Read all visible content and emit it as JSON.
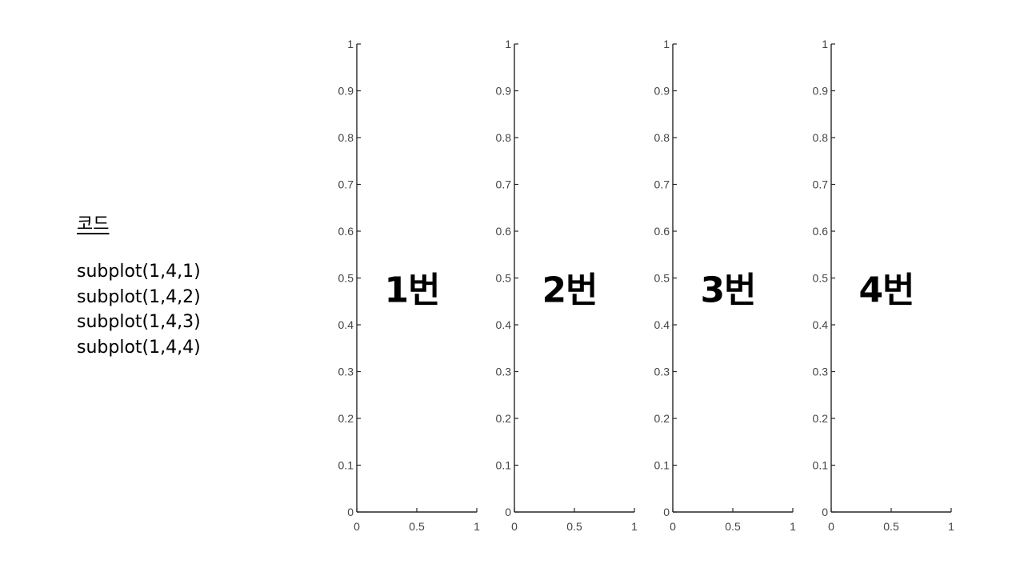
{
  "code_panel": {
    "title": "코드",
    "lines": [
      "subplot(1,4,1)",
      "subplot(1,4,2)",
      "subplot(1,4,3)",
      "subplot(1,4,4)"
    ]
  },
  "chart_data": [
    {
      "type": "line",
      "series": [],
      "title": "",
      "xlabel": "",
      "ylabel": "",
      "xlim": [
        0,
        1
      ],
      "ylim": [
        0,
        1
      ],
      "xticks": [
        "0",
        "0.5",
        "1"
      ],
      "yticks": [
        "0",
        "0.1",
        "0.2",
        "0.3",
        "0.4",
        "0.5",
        "0.6",
        "0.7",
        "0.8",
        "0.9",
        "1"
      ],
      "annotation": "1번",
      "grid": false
    },
    {
      "type": "line",
      "series": [],
      "title": "",
      "xlabel": "",
      "ylabel": "",
      "xlim": [
        0,
        1
      ],
      "ylim": [
        0,
        1
      ],
      "xticks": [
        "0",
        "0.5",
        "1"
      ],
      "yticks": [
        "0",
        "0.1",
        "0.2",
        "0.3",
        "0.4",
        "0.5",
        "0.6",
        "0.7",
        "0.8",
        "0.9",
        "1"
      ],
      "annotation": "2번",
      "grid": false
    },
    {
      "type": "line",
      "series": [],
      "title": "",
      "xlabel": "",
      "ylabel": "",
      "xlim": [
        0,
        1
      ],
      "ylim": [
        0,
        1
      ],
      "xticks": [
        "0",
        "0.5",
        "1"
      ],
      "yticks": [
        "0",
        "0.1",
        "0.2",
        "0.3",
        "0.4",
        "0.5",
        "0.6",
        "0.7",
        "0.8",
        "0.9",
        "1"
      ],
      "annotation": "3번",
      "grid": false
    },
    {
      "type": "line",
      "series": [],
      "title": "",
      "xlabel": "",
      "ylabel": "",
      "xlim": [
        0,
        1
      ],
      "ylim": [
        0,
        1
      ],
      "xticks": [
        "0",
        "0.5",
        "1"
      ],
      "yticks": [
        "0",
        "0.1",
        "0.2",
        "0.3",
        "0.4",
        "0.5",
        "0.6",
        "0.7",
        "0.8",
        "0.9",
        "1"
      ],
      "annotation": "4번",
      "grid": false
    }
  ]
}
